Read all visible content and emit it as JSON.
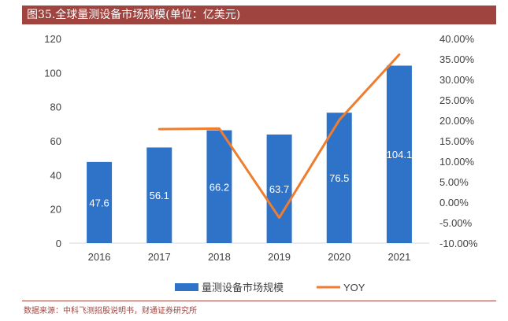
{
  "title": "图35.全球量测设备市场规模(单位：亿美元)",
  "source": "数据来源：中科飞测招股说明书，财通证券研究所",
  "colors": {
    "bar": "#2f73c9",
    "line": "#ee7d30",
    "title_bg": "#a04440"
  },
  "chart_data": {
    "type": "bar+line",
    "categories": [
      "2016",
      "2017",
      "2018",
      "2019",
      "2020",
      "2021"
    ],
    "series": [
      {
        "name": "量测设备市场规模",
        "type": "bar",
        "axis": "left",
        "values": [
          47.6,
          56.1,
          66.2,
          63.7,
          76.5,
          104.1
        ],
        "labels": [
          "47.6",
          "56.1",
          "66.2",
          "63.7",
          "76.5",
          "104.1"
        ]
      },
      {
        "name": "YOY",
        "type": "line",
        "axis": "right",
        "values": [
          null,
          17.86,
          18.0,
          -3.78,
          20.09,
          36.08
        ]
      }
    ],
    "y_left": {
      "min": 0,
      "max": 120,
      "ticks": [
        "0",
        "20",
        "40",
        "60",
        "80",
        "100",
        "120"
      ]
    },
    "y_right": {
      "min": -10,
      "max": 40,
      "ticks": [
        "-10.00%",
        "-5.00%",
        "0.00%",
        "5.00%",
        "10.00%",
        "15.00%",
        "20.00%",
        "25.00%",
        "30.00%",
        "35.00%",
        "40.00%"
      ]
    },
    "grid": false,
    "legend_position": "bottom"
  }
}
